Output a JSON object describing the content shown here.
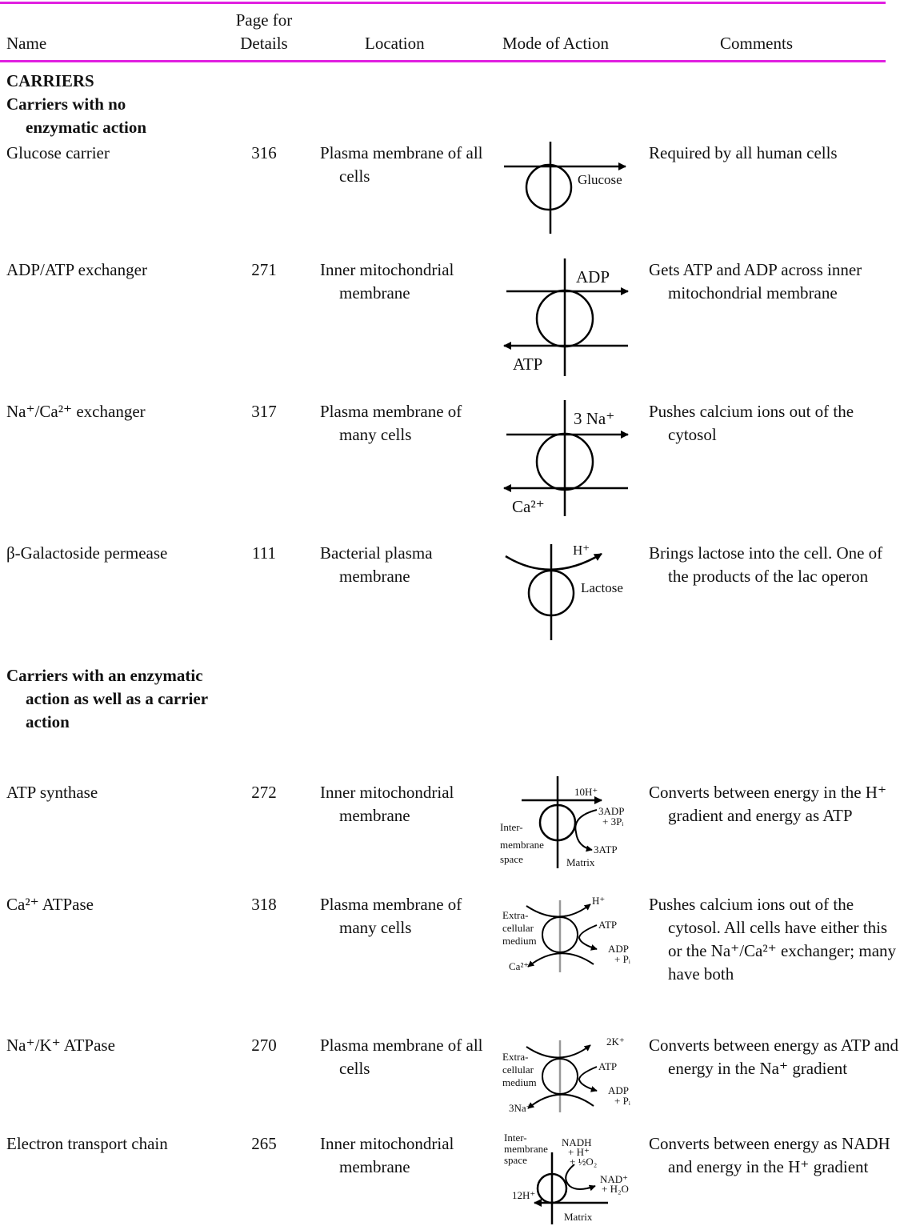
{
  "table": {
    "headers": [
      "Name",
      "Page for Details",
      "Location",
      "Mode of Action",
      "Comments"
    ],
    "title": "CARRIERS",
    "groups": [
      {
        "heading": "Carriers with no enzymatic action",
        "rows": [
          {
            "name": "Glucose carrier",
            "page": 316,
            "location": "Plasma membrane of all cells",
            "diagram": [
              [
                "Glucose"
              ]
            ],
            "comment": "Required by all human cells"
          },
          {
            "name": "ADP/ATP exchanger",
            "page": 271,
            "location": "Inner mitochondrial membrane",
            "diagram": [
              [
                "ADP"
              ],
              [
                "ATP"
              ]
            ],
            "comment": "Gets ATP and ADP across inner mitochondrial membrane"
          },
          {
            "name": "Na⁺/Ca²⁺ exchanger",
            "page": 317,
            "location": "Plasma membrane of many cells",
            "diagram": [
              [
                "3 Na⁺"
              ],
              [
                "Ca²⁺"
              ]
            ],
            "comment": "Pushes calcium ions out of the cytosol"
          },
          {
            "name": "β-Galactoside permease",
            "page": 111,
            "location": "Bacterial plasma membrane",
            "diagram": [
              [
                "H⁺"
              ],
              [
                "Lactose"
              ]
            ],
            "comment": "Brings lactose into the cell. One of the products of the lac operon"
          }
        ]
      },
      {
        "heading": "Carriers with an enzymatic action as well as a carrier action",
        "rows": [
          {
            "name": "ATP synthase",
            "page": 272,
            "location": "Inner mitochondrial membrane",
            "diagram": [
              [
                "10H⁺"
              ],
              [
                "3ADP",
                "+ 3Pᵢ"
              ],
              [
                "3ATP"
              ],
              [
                "Inter-",
                "membrane",
                "space"
              ],
              [
                "Matrix"
              ]
            ],
            "comment": "Converts between energy in the H⁺ gradient and energy as ATP"
          },
          {
            "name": "Ca²⁺ ATPase",
            "page": 318,
            "location": "Plasma membrane of many cells",
            "diagram": [
              [
                "H⁺"
              ],
              [
                "Extra-",
                "cellular",
                "medium"
              ],
              [
                "ATP"
              ],
              [
                "ADP",
                "+ Pᵢ"
              ],
              [
                "Ca²⁺"
              ]
            ],
            "comment": "Pushes calcium ions out of the cytosol. All cells have either this or the Na⁺/Ca²⁺ exchanger; many have both"
          },
          {
            "name": "Na⁺/K⁺ ATPase",
            "page": 270,
            "location": "Plasma membrane of all cells",
            "diagram": [
              [
                "2K⁺"
              ],
              [
                "Extra-",
                "cellular",
                "medium"
              ],
              [
                "ATP"
              ],
              [
                "ADP",
                "+ Pᵢ"
              ],
              [
                "3Na⁺"
              ]
            ],
            "comment": "Converts between energy as ATP and energy in the Na⁺ gradient"
          },
          {
            "name": "Electron transport chain",
            "page": 265,
            "location": "Inner mitochondrial membrane",
            "diagram": [
              [
                "Inter-",
                "membrane",
                "space"
              ],
              [
                "NADH",
                "+ H⁺",
                "+ ½O₂"
              ],
              [
                "NAD⁺",
                "+ H₂O"
              ],
              [
                "12H⁺"
              ],
              [
                "Matrix"
              ]
            ],
            "comment": "Converts between energy as NADH and energy in the H⁺ gradient"
          }
        ]
      }
    ]
  }
}
